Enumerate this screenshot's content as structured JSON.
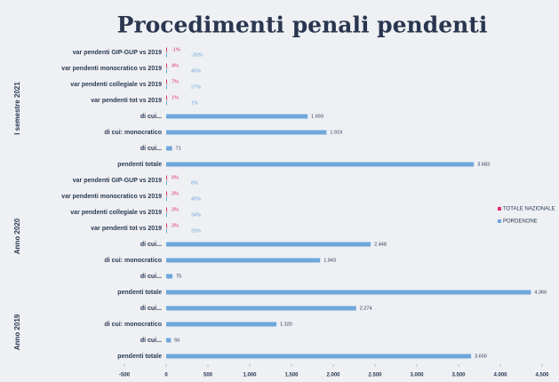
{
  "chart_data": {
    "type": "hbar",
    "title": "Procedimenti penali pendenti",
    "categories": [
      "var pendenti GIP-GUP vs 2019",
      "var pendenti monocratico vs 2019",
      "var pendenti collegiale vs 2019",
      "var pendenti tot vs 2019",
      "di cui...",
      "di cui: monocratico",
      "di cui...",
      "pendenti totale",
      "var pendenti GIP-GUP vs 2019",
      "var pendenti monocratico vs 2019",
      "var pendenti collegiale vs 2019",
      "var pendenti tot vs 2019",
      "di cui...",
      "di cui: monocratico",
      "di cui...",
      "pendenti totale",
      "di cui...",
      "di cui: monocratico",
      "di cui...",
      "pendenti totale"
    ],
    "category_groups": [
      "I semestre 2021",
      "I semestre 2021",
      "I semestre 2021",
      "I semestre 2021",
      "I semestre 2021",
      "I semestre 2021",
      "I semestre 2021",
      "I semestre 2021",
      "Anno 2020",
      "Anno 2020",
      "Anno 2020",
      "Anno 2020",
      "Anno 2020",
      "Anno 2020",
      "Anno 2020",
      "Anno 2020",
      "Anno 2019",
      "Anno 2019",
      "Anno 2019",
      "Anno 2019"
    ],
    "series": [
      {
        "name": "TOTALE NAZIONALE",
        "color": "#e0306a",
        "values": [
          -0.01,
          0.04,
          0.07,
          0.01,
          null,
          null,
          null,
          null,
          0,
          0.03,
          0.03,
          0.03,
          null,
          null,
          null,
          null,
          null,
          null,
          null,
          null
        ],
        "value_labels": [
          "-1%",
          "4%",
          "7%",
          "1%",
          null,
          null,
          null,
          null,
          "0%",
          "3%",
          "3%",
          "3%",
          null,
          null,
          null,
          null,
          null,
          null,
          null,
          null
        ]
      },
      {
        "name": "PORDENONE",
        "color": "#6fa7dc",
        "values": [
          -0.26,
          0.45,
          0.27,
          0.01,
          1693,
          1919,
          71,
          3683,
          0.08,
          0.4,
          0.34,
          0.2,
          2448,
          1843,
          75,
          4366,
          2274,
          1320,
          56,
          3650
        ],
        "value_labels": [
          "-26%",
          "45%",
          "27%",
          "1%",
          "1.693",
          "1.919",
          "71",
          "3.683",
          "8%",
          "40%",
          "34%",
          "20%",
          "2.448",
          "1.843",
          "75",
          "4.366",
          "2.274",
          "1.320",
          "56",
          "3.650"
        ]
      }
    ],
    "xlim": [
      -500,
      4500
    ],
    "xticks": [
      -500,
      0,
      500,
      {
        "value": 1000,
        "label": "1.000"
      },
      {
        "value": 1500,
        "label": "1.500"
      },
      {
        "value": 2000,
        "label": "2.000"
      },
      {
        "value": 2500,
        "label": "2.500"
      },
      {
        "value": 3000,
        "label": "3.000"
      },
      {
        "value": 3500,
        "label": "3.500"
      },
      {
        "value": 4000,
        "label": "4.000"
      },
      {
        "value": 4500,
        "label": "4.500"
      }
    ],
    "legend": "right"
  }
}
